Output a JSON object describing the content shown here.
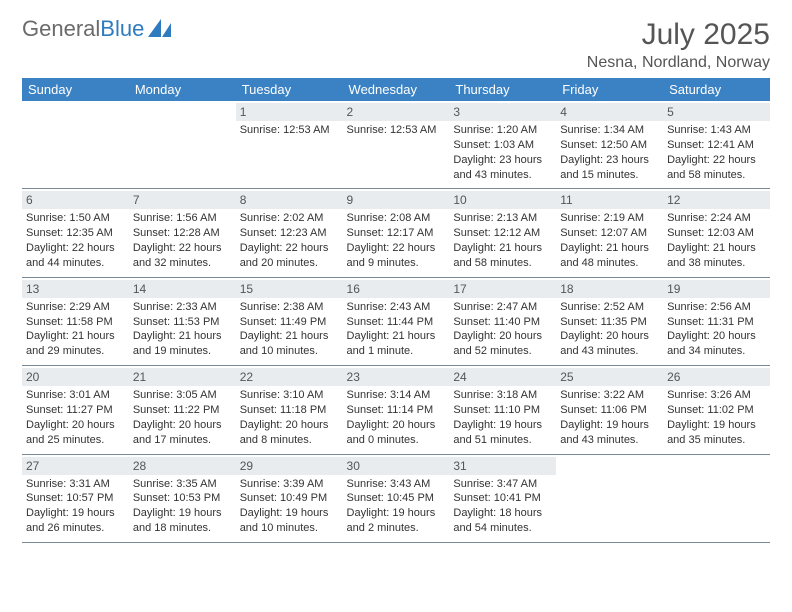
{
  "brand": {
    "word1": "General",
    "word2": "Blue",
    "logo_color": "#2f7bbf"
  },
  "title": {
    "month_year": "July 2025",
    "location": "Nesna, Nordland, Norway"
  },
  "colors": {
    "header_bg": "#3b82c4",
    "header_text": "#ffffff",
    "daynum_bg": "#e9ecef",
    "border": "#7a8a99",
    "text": "#333333"
  },
  "day_headers": [
    "Sunday",
    "Monday",
    "Tuesday",
    "Wednesday",
    "Thursday",
    "Friday",
    "Saturday"
  ],
  "weeks": [
    [
      null,
      null,
      {
        "n": "1",
        "lines": [
          "Sunrise: 12:53 AM"
        ]
      },
      {
        "n": "2",
        "lines": [
          "Sunrise: 12:53 AM"
        ]
      },
      {
        "n": "3",
        "lines": [
          "Sunrise: 1:20 AM",
          "Sunset: 1:03 AM",
          "Daylight: 23 hours and 43 minutes."
        ]
      },
      {
        "n": "4",
        "lines": [
          "Sunrise: 1:34 AM",
          "Sunset: 12:50 AM",
          "Daylight: 23 hours and 15 minutes."
        ]
      },
      {
        "n": "5",
        "lines": [
          "Sunrise: 1:43 AM",
          "Sunset: 12:41 AM",
          "Daylight: 22 hours and 58 minutes."
        ]
      }
    ],
    [
      {
        "n": "6",
        "lines": [
          "Sunrise: 1:50 AM",
          "Sunset: 12:35 AM",
          "Daylight: 22 hours and 44 minutes."
        ]
      },
      {
        "n": "7",
        "lines": [
          "Sunrise: 1:56 AM",
          "Sunset: 12:28 AM",
          "Daylight: 22 hours and 32 minutes."
        ]
      },
      {
        "n": "8",
        "lines": [
          "Sunrise: 2:02 AM",
          "Sunset: 12:23 AM",
          "Daylight: 22 hours and 20 minutes."
        ]
      },
      {
        "n": "9",
        "lines": [
          "Sunrise: 2:08 AM",
          "Sunset: 12:17 AM",
          "Daylight: 22 hours and 9 minutes."
        ]
      },
      {
        "n": "10",
        "lines": [
          "Sunrise: 2:13 AM",
          "Sunset: 12:12 AM",
          "Daylight: 21 hours and 58 minutes."
        ]
      },
      {
        "n": "11",
        "lines": [
          "Sunrise: 2:19 AM",
          "Sunset: 12:07 AM",
          "Daylight: 21 hours and 48 minutes."
        ]
      },
      {
        "n": "12",
        "lines": [
          "Sunrise: 2:24 AM",
          "Sunset: 12:03 AM",
          "Daylight: 21 hours and 38 minutes."
        ]
      }
    ],
    [
      {
        "n": "13",
        "lines": [
          "Sunrise: 2:29 AM",
          "Sunset: 11:58 PM",
          "Daylight: 21 hours and 29 minutes."
        ]
      },
      {
        "n": "14",
        "lines": [
          "Sunrise: 2:33 AM",
          "Sunset: 11:53 PM",
          "Daylight: 21 hours and 19 minutes."
        ]
      },
      {
        "n": "15",
        "lines": [
          "Sunrise: 2:38 AM",
          "Sunset: 11:49 PM",
          "Daylight: 21 hours and 10 minutes."
        ]
      },
      {
        "n": "16",
        "lines": [
          "Sunrise: 2:43 AM",
          "Sunset: 11:44 PM",
          "Daylight: 21 hours and 1 minute."
        ]
      },
      {
        "n": "17",
        "lines": [
          "Sunrise: 2:47 AM",
          "Sunset: 11:40 PM",
          "Daylight: 20 hours and 52 minutes."
        ]
      },
      {
        "n": "18",
        "lines": [
          "Sunrise: 2:52 AM",
          "Sunset: 11:35 PM",
          "Daylight: 20 hours and 43 minutes."
        ]
      },
      {
        "n": "19",
        "lines": [
          "Sunrise: 2:56 AM",
          "Sunset: 11:31 PM",
          "Daylight: 20 hours and 34 minutes."
        ]
      }
    ],
    [
      {
        "n": "20",
        "lines": [
          "Sunrise: 3:01 AM",
          "Sunset: 11:27 PM",
          "Daylight: 20 hours and 25 minutes."
        ]
      },
      {
        "n": "21",
        "lines": [
          "Sunrise: 3:05 AM",
          "Sunset: 11:22 PM",
          "Daylight: 20 hours and 17 minutes."
        ]
      },
      {
        "n": "22",
        "lines": [
          "Sunrise: 3:10 AM",
          "Sunset: 11:18 PM",
          "Daylight: 20 hours and 8 minutes."
        ]
      },
      {
        "n": "23",
        "lines": [
          "Sunrise: 3:14 AM",
          "Sunset: 11:14 PM",
          "Daylight: 20 hours and 0 minutes."
        ]
      },
      {
        "n": "24",
        "lines": [
          "Sunrise: 3:18 AM",
          "Sunset: 11:10 PM",
          "Daylight: 19 hours and 51 minutes."
        ]
      },
      {
        "n": "25",
        "lines": [
          "Sunrise: 3:22 AM",
          "Sunset: 11:06 PM",
          "Daylight: 19 hours and 43 minutes."
        ]
      },
      {
        "n": "26",
        "lines": [
          "Sunrise: 3:26 AM",
          "Sunset: 11:02 PM",
          "Daylight: 19 hours and 35 minutes."
        ]
      }
    ],
    [
      {
        "n": "27",
        "lines": [
          "Sunrise: 3:31 AM",
          "Sunset: 10:57 PM",
          "Daylight: 19 hours and 26 minutes."
        ]
      },
      {
        "n": "28",
        "lines": [
          "Sunrise: 3:35 AM",
          "Sunset: 10:53 PM",
          "Daylight: 19 hours and 18 minutes."
        ]
      },
      {
        "n": "29",
        "lines": [
          "Sunrise: 3:39 AM",
          "Sunset: 10:49 PM",
          "Daylight: 19 hours and 10 minutes."
        ]
      },
      {
        "n": "30",
        "lines": [
          "Sunrise: 3:43 AM",
          "Sunset: 10:45 PM",
          "Daylight: 19 hours and 2 minutes."
        ]
      },
      {
        "n": "31",
        "lines": [
          "Sunrise: 3:47 AM",
          "Sunset: 10:41 PM",
          "Daylight: 18 hours and 54 minutes."
        ]
      },
      null,
      null
    ]
  ]
}
